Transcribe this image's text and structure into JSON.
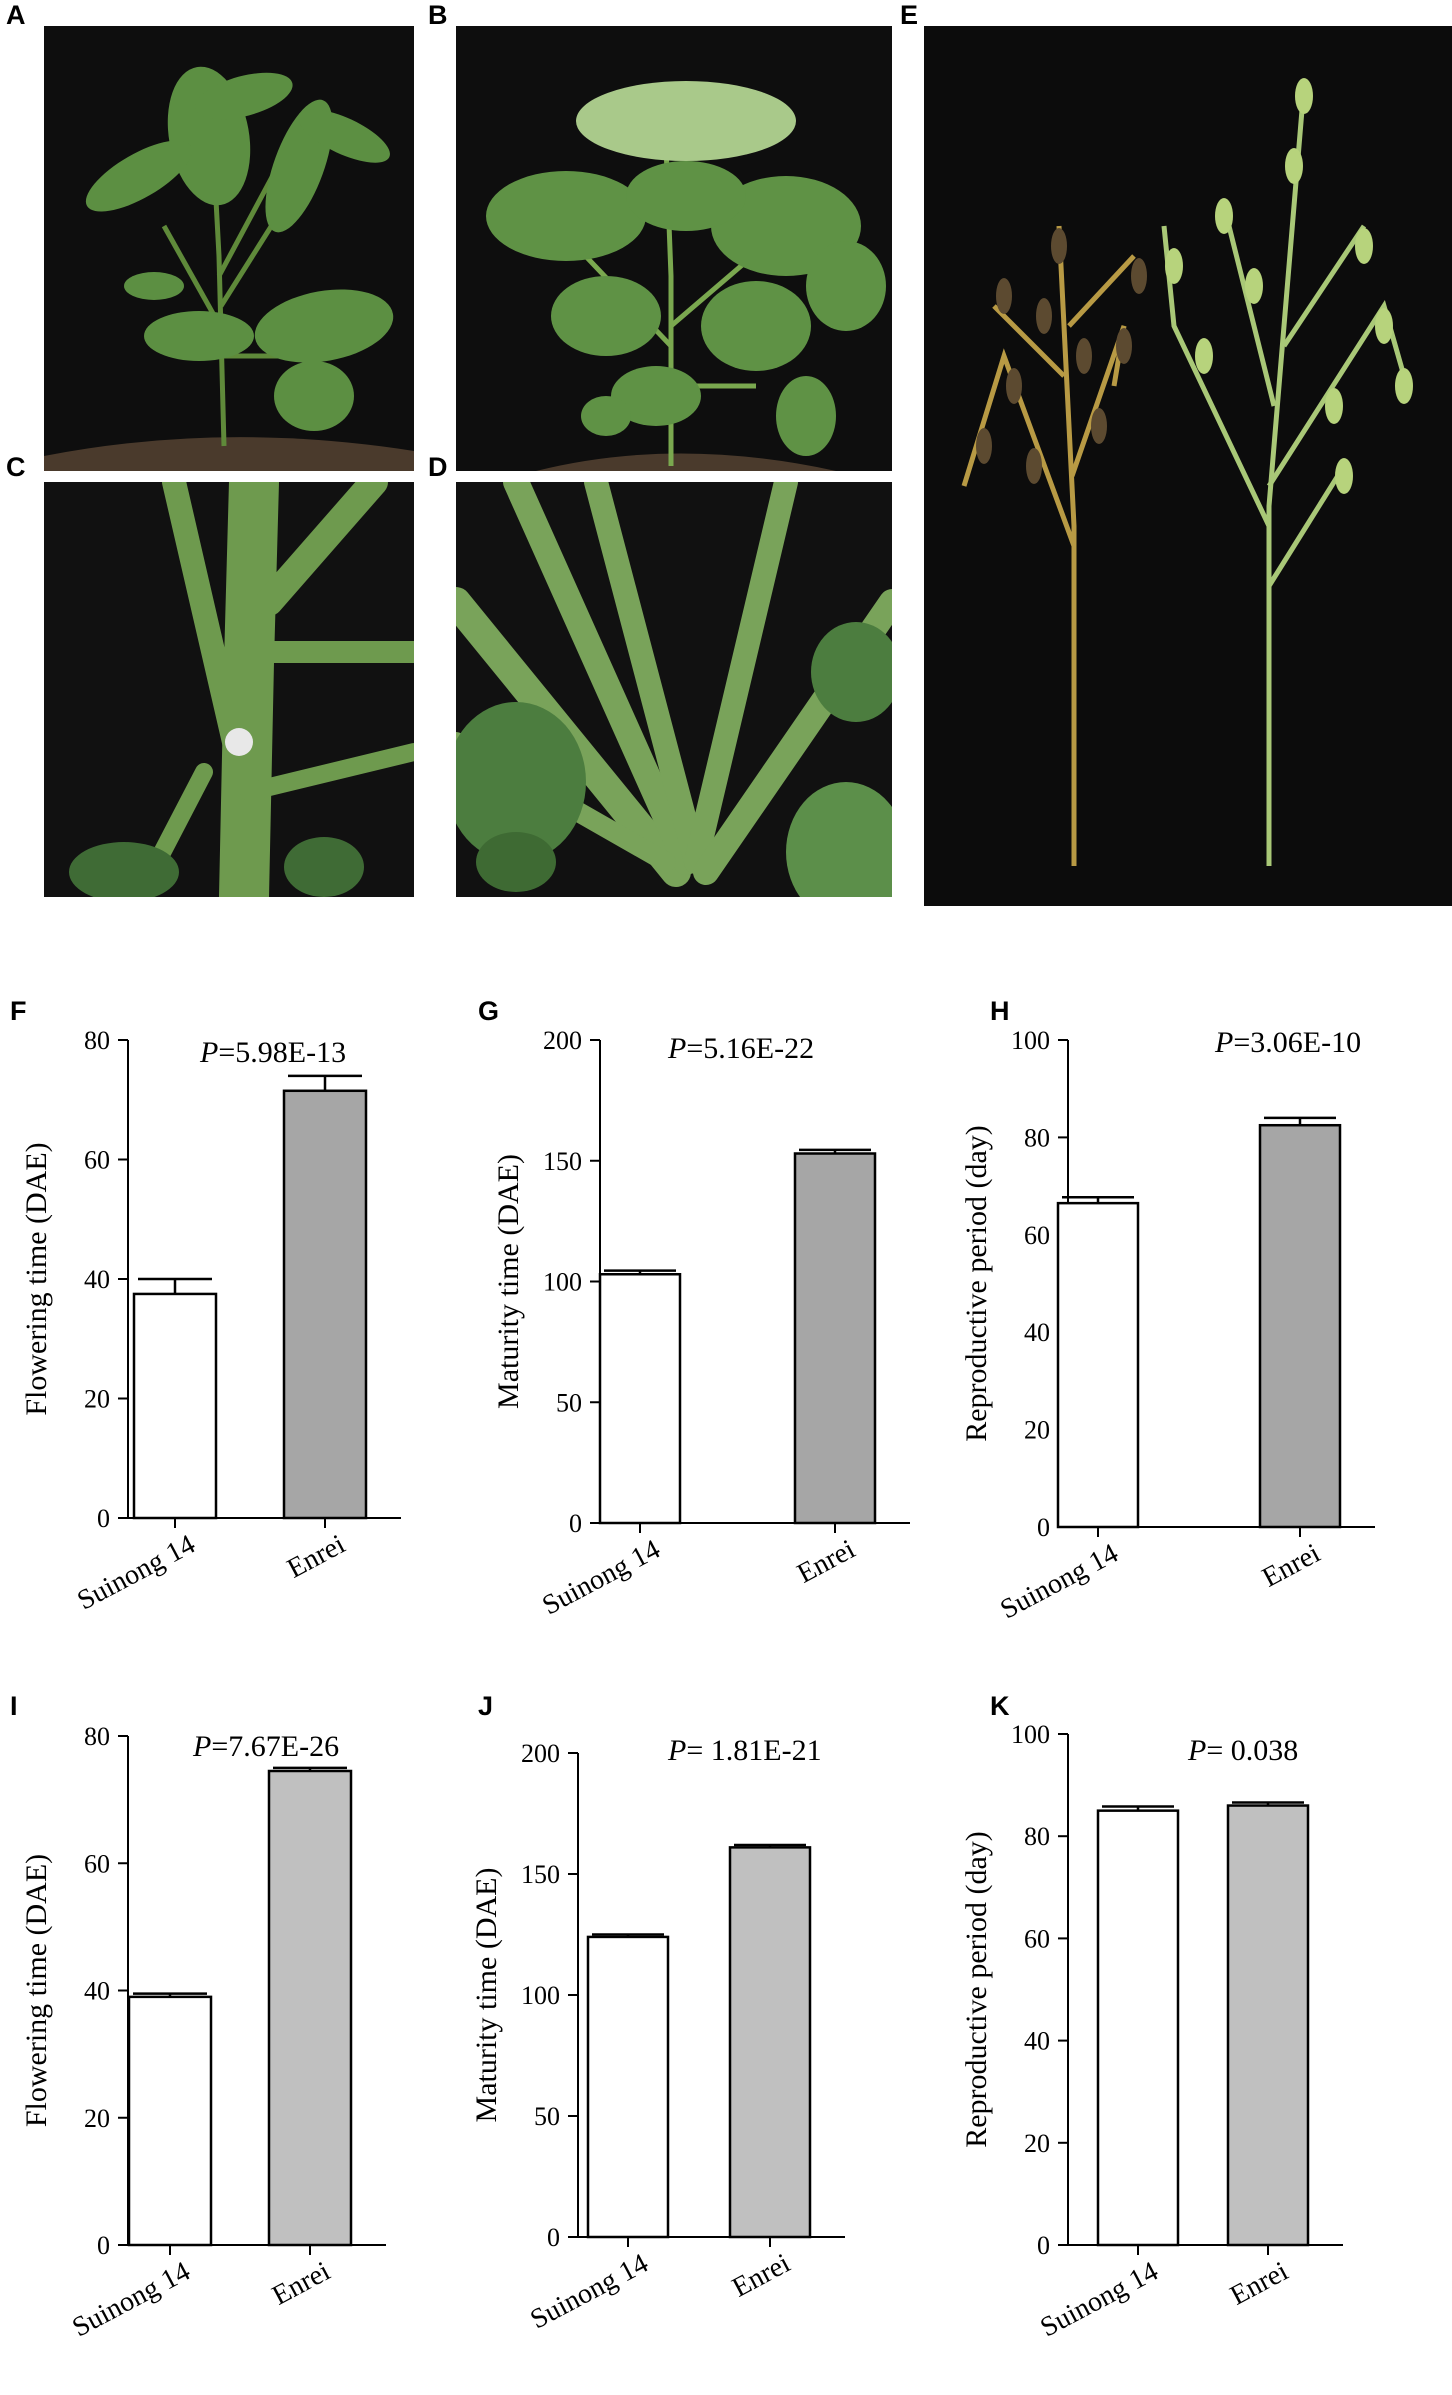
{
  "panel_labels": [
    "A",
    "B",
    "C",
    "D",
    "E",
    "F",
    "G",
    "H",
    "I",
    "J",
    "K"
  ],
  "photos": [
    {
      "label": "A",
      "content": "soybean-plant-seedling"
    },
    {
      "label": "B",
      "content": "soybean-plant-leafy"
    },
    {
      "label": "C",
      "content": "stem-node-closeup-flower"
    },
    {
      "label": "D",
      "content": "stem-branches-closeup"
    },
    {
      "label": "E",
      "content": "mature-plants-with-pods"
    }
  ],
  "colors": {
    "bar_white": "#ffffff",
    "bar_gray_dark": "#a6a6a6",
    "bar_gray_light": "#c0c0c0",
    "photo_bg": "#0e0e0e"
  },
  "chart_data": [
    {
      "label": "F",
      "type": "bar",
      "categories": [
        "Suinong 14",
        "Enrei"
      ],
      "values": [
        37.5,
        71.5
      ],
      "errors": [
        2.5,
        2.5
      ],
      "p_prefix": "P",
      "p_text": "=5.98E-13",
      "ylabel": "Flowering time (DAE)",
      "ylim": [
        0,
        80
      ],
      "yticks": [
        0,
        20,
        40,
        60,
        80
      ]
    },
    {
      "label": "G",
      "type": "bar",
      "categories": [
        "Suinong 14",
        "Enrei"
      ],
      "values": [
        103,
        153
      ],
      "errors": [
        1.5,
        1.5
      ],
      "p_prefix": "P",
      "p_text": "=5.16E-22",
      "ylabel": "Maturity time (DAE)",
      "ylim": [
        0,
        200
      ],
      "yticks": [
        0,
        50,
        100,
        150,
        200
      ]
    },
    {
      "label": "H",
      "type": "bar",
      "categories": [
        "Suinong 14",
        "Enrei"
      ],
      "values": [
        66.5,
        82.5
      ],
      "errors": [
        1.2,
        1.5
      ],
      "p_prefix": "P",
      "p_text": "=3.06E-10",
      "ylabel": "Reproductive period (day)",
      "ylim": [
        0,
        100
      ],
      "yticks": [
        0,
        20,
        40,
        60,
        80,
        100
      ]
    },
    {
      "label": "I",
      "type": "bar",
      "categories": [
        "Suinong 14",
        "Enrei"
      ],
      "values": [
        39,
        74.5
      ],
      "errors": [
        0.5,
        0.5
      ],
      "p_prefix": "P",
      "p_text": "=7.67E-26",
      "ylabel": "Flowering time (DAE)",
      "ylim": [
        0,
        80
      ],
      "yticks": [
        0,
        20,
        40,
        60,
        80
      ]
    },
    {
      "label": "J",
      "type": "bar",
      "categories": [
        "Suinong 14",
        "Enrei"
      ],
      "values": [
        124,
        161
      ],
      "errors": [
        1,
        1
      ],
      "p_prefix": "P",
      "p_text": "= 1.81E-21",
      "ylabel": "Maturity time (DAE)",
      "ylim": [
        0,
        200
      ],
      "yticks": [
        0,
        50,
        100,
        150,
        200
      ]
    },
    {
      "label": "K",
      "type": "bar",
      "categories": [
        "Suinong 14",
        "Enrei"
      ],
      "values": [
        85,
        86
      ],
      "errors": [
        0.8,
        0.6
      ],
      "p_prefix": "P",
      "p_text": "= 0.038",
      "ylabel": "Reproductive period (day)",
      "ylim": [
        0,
        100
      ],
      "yticks": [
        0,
        20,
        40,
        60,
        80,
        100
      ]
    }
  ]
}
